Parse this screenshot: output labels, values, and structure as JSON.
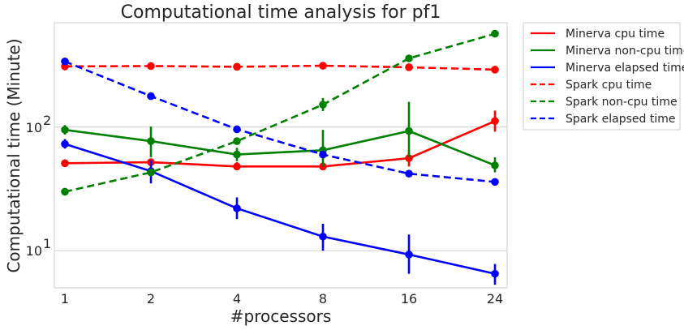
{
  "chart_data": {
    "type": "line",
    "title": "Computational time analysis for pf1",
    "xlabel": "#processors",
    "ylabel": "Computational time (Minute)",
    "yscale": "log",
    "ylim": [
      5,
      700
    ],
    "grid": "horizontal",
    "legend_position": "outside-right",
    "categories": [
      "1",
      "2",
      "4",
      "8",
      "16",
      "24"
    ],
    "yticks": [
      {
        "value": 10,
        "label": "10",
        "sup": "1"
      },
      {
        "value": 100,
        "label": "10",
        "sup": "2"
      }
    ],
    "series": [
      {
        "name": "Minerva cpu time",
        "color": "#ff0000",
        "dash": "solid",
        "values": [
          51,
          52,
          48,
          48,
          56,
          112
        ],
        "err_low": [
          48,
          49,
          45,
          45,
          48,
          92
        ],
        "err_high": [
          54,
          55,
          52,
          52,
          63,
          136
        ]
      },
      {
        "name": "Minerva non-cpu time",
        "color": "#008000",
        "dash": "solid",
        "values": [
          95,
          77,
          60,
          65,
          93,
          49
        ],
        "err_low": [
          87,
          57,
          53,
          48,
          57,
          43
        ],
        "err_high": [
          104,
          101,
          68,
          95,
          160,
          57
        ]
      },
      {
        "name": "Minerva elapsed time",
        "color": "#0000ff",
        "dash": "solid",
        "values": [
          73,
          44,
          22,
          13,
          9.3,
          6.5
        ],
        "err_low": [
          67,
          35,
          18,
          10,
          6.5,
          5.3
        ],
        "err_high": [
          80,
          54,
          27,
          16.5,
          13.5,
          7.8
        ]
      },
      {
        "name": "Spark cpu time",
        "color": "#ff0000",
        "dash": "dashed",
        "values": [
          310,
          312,
          308,
          314,
          305,
          292
        ],
        "err_low": [
          300,
          302,
          298,
          304,
          296,
          282
        ],
        "err_high": [
          320,
          322,
          318,
          324,
          314,
          302
        ]
      },
      {
        "name": "Spark non-cpu time",
        "color": "#008000",
        "dash": "dashed",
        "values": [
          30,
          43,
          77,
          152,
          360,
          570
        ],
        "err_low": [
          29,
          41,
          72,
          135,
          340,
          550
        ],
        "err_high": [
          31,
          45,
          82,
          172,
          385,
          595
        ]
      },
      {
        "name": "Spark elapsed time",
        "color": "#0000ff",
        "dash": "dashed",
        "values": [
          340,
          178,
          96,
          60,
          42,
          36
        ],
        "err_low": [
          325,
          170,
          92,
          57,
          40,
          34
        ],
        "err_high": [
          355,
          186,
          100,
          63,
          44,
          38
        ]
      }
    ]
  }
}
